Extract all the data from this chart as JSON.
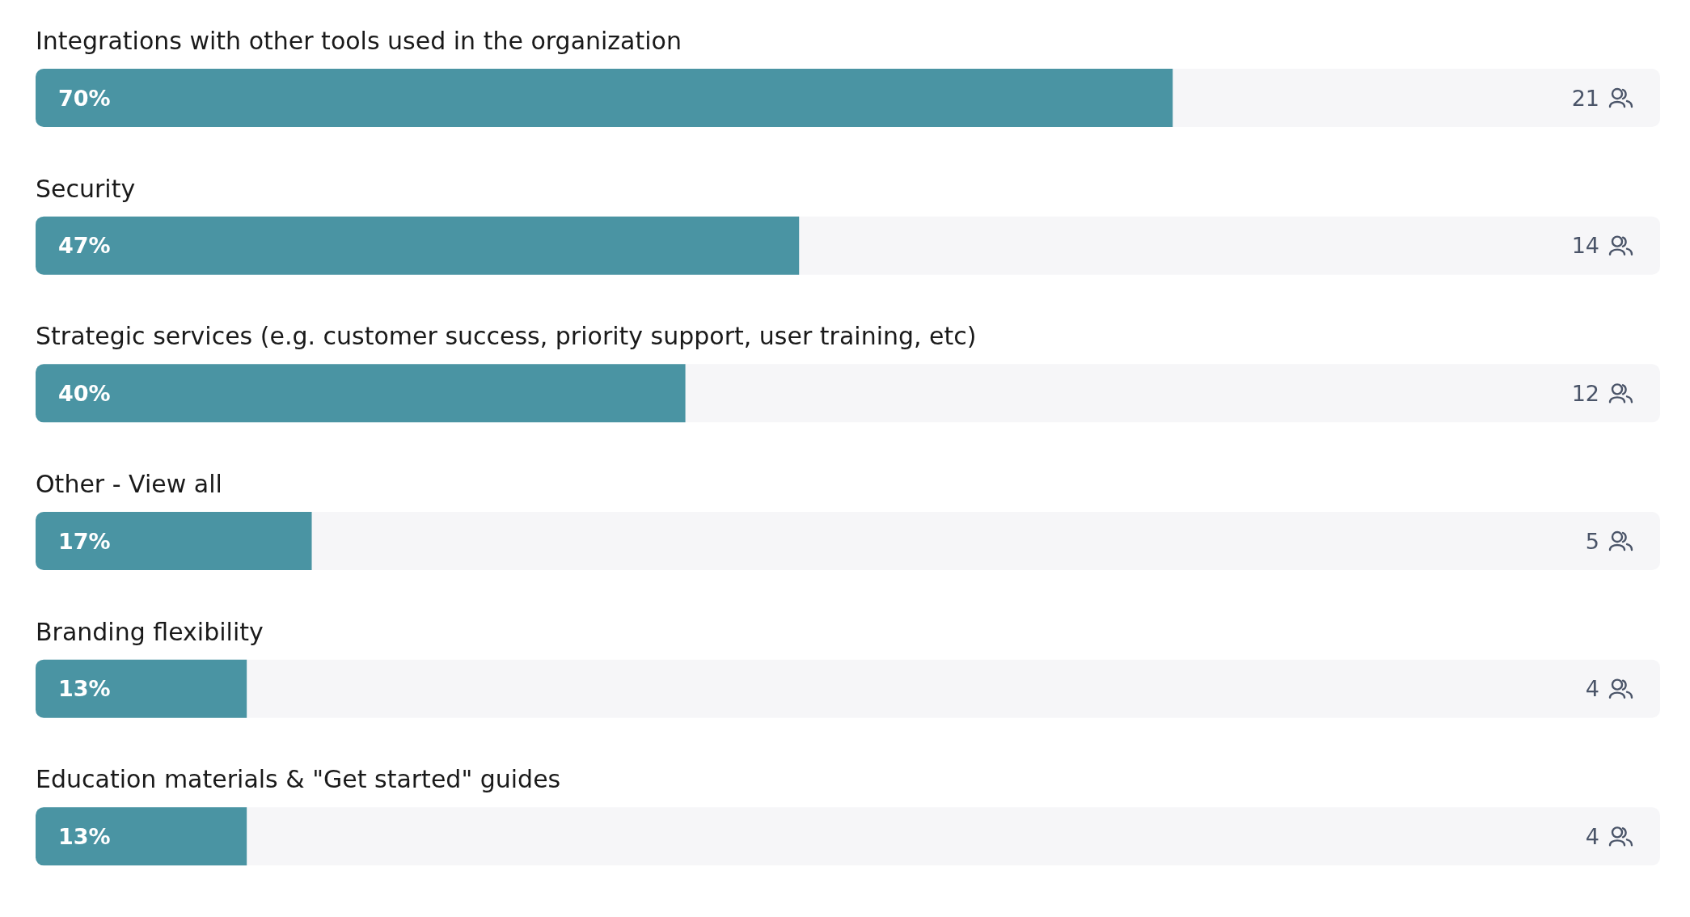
{
  "chart_data": {
    "type": "bar",
    "orientation": "horizontal",
    "categories": [
      "Integrations with other tools used in the organization",
      "Security",
      "Strategic services (e.g. customer success, priority support, user training, etc)",
      "Other - View all",
      "Branding flexibility",
      "Education materials & \"Get started\" guides"
    ],
    "values": [
      70,
      47,
      40,
      17,
      13,
      13
    ],
    "value_labels": [
      "70%",
      "47%",
      "40%",
      "17%",
      "13%",
      "13%"
    ],
    "color": "#4a94a3",
    "xlim": [
      0,
      100
    ],
    "tick_labels": false,
    "annotations": [
      "21",
      "14",
      "12",
      "5",
      "4",
      "4"
    ]
  }
}
